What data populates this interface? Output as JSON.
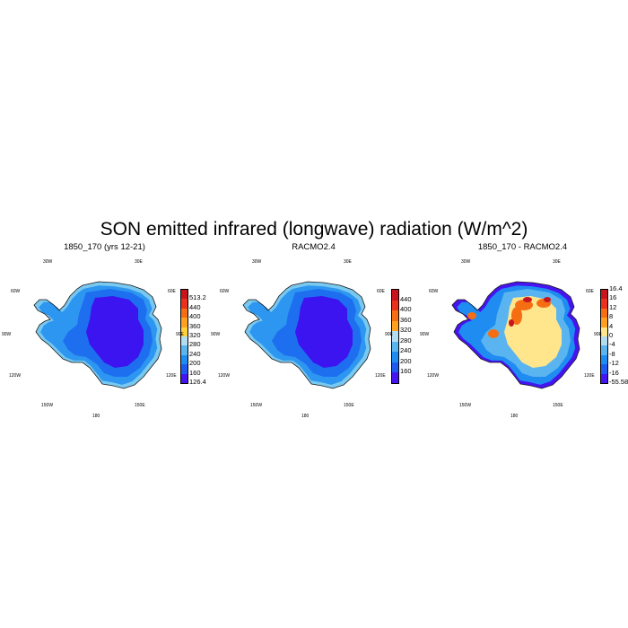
{
  "title": "SON emitted infrared (longwave) radiation (W/m^2)",
  "lon_labels": {
    "w30": "30W",
    "e30": "30E",
    "w60": "60W",
    "e60": "60E",
    "w90": "90W",
    "e90": "90E",
    "w120": "120W",
    "e120": "120E",
    "w150": "150W",
    "e150": "150E",
    "s180": "180"
  },
  "panels": [
    {
      "title": "1850_170 (yrs 12-21)",
      "colorbar": {
        "labels": [
          "513.2",
          "440",
          "400",
          "360",
          "320",
          "280",
          "240",
          "200",
          "160",
          "126.4"
        ],
        "colors": [
          "#c8141e",
          "#e8321e",
          "#f56e14",
          "#ffa01e",
          "#ffd23c",
          "#b4dcf0",
          "#5ab4f0",
          "#1e8cf0",
          "#1e5af0",
          "#4614f0"
        ]
      },
      "map": {
        "interior": "#3c14f0",
        "mid": "#1e6ef0",
        "coast": "#2d96f0",
        "edge": "#78c8f0"
      }
    },
    {
      "title": "RACMO2.4",
      "colorbar": {
        "labels": [
          "440",
          "400",
          "360",
          "320",
          "280",
          "240",
          "200",
          "160"
        ],
        "colors": [
          "#c8141e",
          "#e8321e",
          "#f56e14",
          "#ffa01e",
          "#b4dcf0",
          "#5ab4f0",
          "#1e8cf0",
          "#1e5af0",
          "#4614f0"
        ]
      },
      "map": {
        "interior": "#3c14f0",
        "mid": "#1e6ef0",
        "coast": "#2d96f0",
        "edge": "#78c8f0"
      }
    },
    {
      "title": "1850_170 - RACMO2.4",
      "colorbar": {
        "labels": [
          "16.4",
          "16",
          "12",
          "8",
          "4",
          "0",
          "-4",
          "-8",
          "-12",
          "-16",
          "-55.58"
        ],
        "colors": [
          "#c8141e",
          "#e8321e",
          "#f56e14",
          "#ffa01e",
          "#ffe68c",
          "#b4dcf0",
          "#5ab4f0",
          "#1e8cf0",
          "#1e5af0",
          "#4614f0"
        ]
      },
      "map": {
        "interior": "#ffe68c",
        "mid": "#5ab4f0",
        "coast": "#1e8cf0",
        "edge": "#4614f0",
        "hot": "#f56e14"
      }
    }
  ]
}
